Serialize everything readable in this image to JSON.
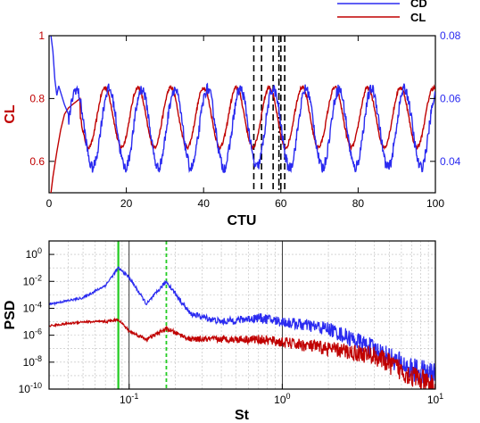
{
  "colors": {
    "cl": "#c00000",
    "cd": "#2a2af0",
    "vline_solid": "#22cc22",
    "vline_dashed": "#22cc22",
    "grid": "#bdbdbd",
    "axis": "#000000"
  },
  "chart_data": [
    {
      "type": "line",
      "xlabel": "CTU",
      "ylabel_left": "CL",
      "ylabel_right": "CD",
      "xlim": [
        0,
        100
      ],
      "ylim_left": [
        0.5,
        1.0
      ],
      "ylim_right": [
        0.03,
        0.08
      ],
      "x_ticks": [
        "0",
        "20",
        "40",
        "60",
        "80",
        "100"
      ],
      "y_ticks_left": [
        "0.6",
        "0.8",
        "1"
      ],
      "y_ticks_right": [
        "0.04",
        "0.06",
        "0.08"
      ],
      "legend": {
        "position": "top-right",
        "entries": [
          "CD",
          "CL"
        ]
      },
      "series": [
        {
          "name": "CL",
          "axis": "left",
          "period": 8.5,
          "phase": 14.5,
          "mean": 0.74,
          "amplitude": 0.095,
          "x": [
            0,
            1,
            2,
            3,
            4,
            5,
            6,
            7,
            8
          ],
          "values": [
            0.45,
            0.55,
            0.63,
            0.7,
            0.75,
            0.77,
            0.78,
            0.79,
            0.8
          ]
        },
        {
          "name": "CD",
          "axis": "right",
          "period": 8.5,
          "phase": 15.5,
          "mean": 0.0505,
          "amplitude": 0.0125,
          "x": [
            0,
            1,
            1.5,
            2,
            2.5,
            3,
            4,
            5
          ],
          "values": [
            0.085,
            0.075,
            0.066,
            0.061,
            0.064,
            0.062,
            0.058,
            0.055
          ]
        }
      ],
      "vertical_lines": {
        "dashed_x": [
          53,
          55,
          58,
          60,
          61
        ],
        "dashdot_x": [
          59.5
        ]
      }
    },
    {
      "type": "line",
      "xlabel": "St",
      "ylabel": "PSD",
      "xscale": "log",
      "yscale": "log",
      "xlim": [
        0.03,
        10
      ],
      "ylim": [
        1e-10,
        10
      ],
      "x_tick_labels": [
        "10^-1",
        "10^0",
        "10^1"
      ],
      "y_tick_labels": [
        "10^0",
        "10^-2",
        "10^-4",
        "10^-6",
        "10^-8",
        "10^-10"
      ],
      "grid": true,
      "vertical_lines": {
        "solid_x": 0.085,
        "dashed_x": 0.175
      },
      "series": [
        {
          "name": "CD",
          "x": [
            0.03,
            0.05,
            0.07,
            0.085,
            0.1,
            0.13,
            0.175,
            0.25,
            0.4,
            0.7,
            1,
            2,
            4,
            7,
            10
          ],
          "values": [
            0.0002,
            0.0006,
            0.005,
            0.1,
            0.02,
            0.0002,
            0.01,
            4e-05,
            1e-05,
            2e-05,
            1e-05,
            3e-06,
            1e-07,
            3e-09,
            1e-09
          ]
        },
        {
          "name": "CL",
          "x": [
            0.03,
            0.05,
            0.07,
            0.085,
            0.1,
            0.13,
            0.175,
            0.25,
            0.4,
            0.7,
            1,
            2,
            4,
            7,
            10
          ],
          "values": [
            5e-06,
            1e-05,
            1e-05,
            1.5e-05,
            2e-06,
            5e-07,
            3e-06,
            5e-07,
            5e-07,
            5e-07,
            3e-07,
            1e-07,
            3e-08,
            1e-09,
            1e-10
          ]
        }
      ]
    }
  ]
}
